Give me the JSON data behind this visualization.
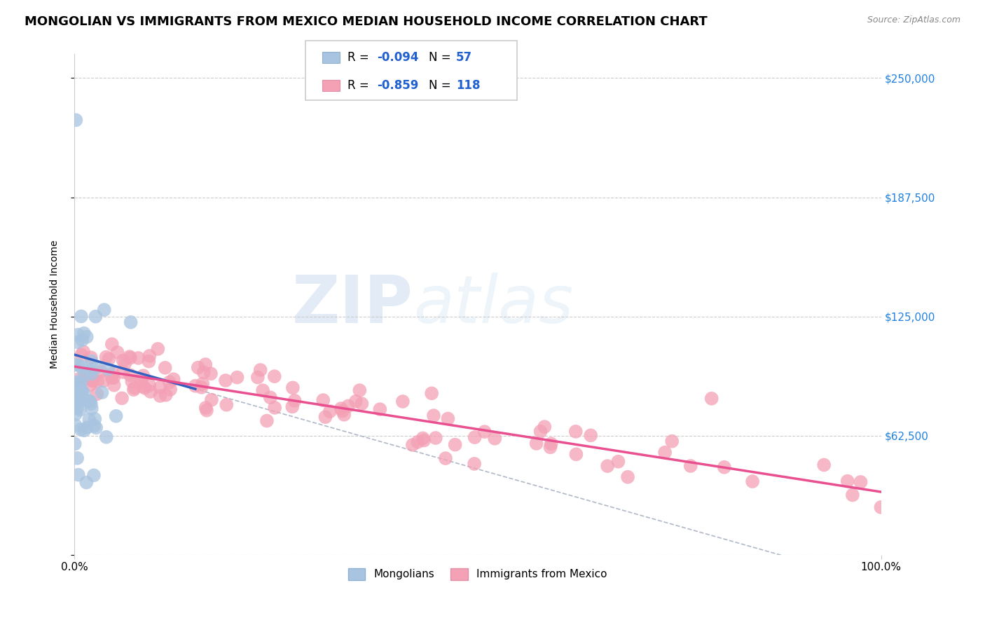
{
  "title": "MONGOLIAN VS IMMIGRANTS FROM MEXICO MEDIAN HOUSEHOLD INCOME CORRELATION CHART",
  "source": "Source: ZipAtlas.com",
  "xlabel": "",
  "ylabel": "Median Household Income",
  "xlim": [
    0.0,
    100.0
  ],
  "ylim": [
    0,
    262500
  ],
  "yticks": [
    0,
    62500,
    125000,
    187500,
    250000
  ],
  "ytick_labels": [
    "",
    "$62,500",
    "$125,000",
    "$187,500",
    "$250,000"
  ],
  "xtick_labels": [
    "0.0%",
    "100.0%"
  ],
  "legend1_label": "R = -0.094   N =  57",
  "legend2_label": "R = -0.859   N = 118",
  "legend_mongolian": "Mongolians",
  "legend_mexico": "Immigrants from Mexico",
  "mongolian_color": "#a8c4e0",
  "mexico_color": "#f4a0b5",
  "mongolian_line_color": "#3060c0",
  "mexico_line_color": "#e85090",
  "background_color": "#ffffff",
  "grid_color": "#cccccc",
  "watermark_zip": "ZIP",
  "watermark_atlas": "atlas",
  "title_fontsize": 13,
  "axis_label_fontsize": 10,
  "tick_label_color_y": "#2080e0"
}
